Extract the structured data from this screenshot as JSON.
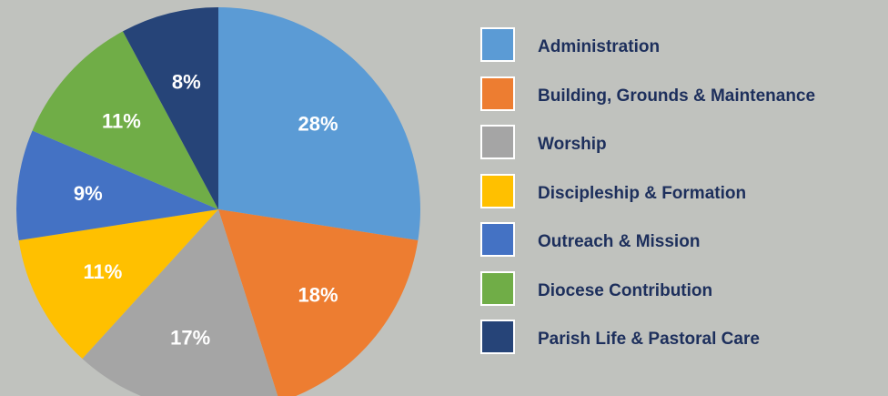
{
  "chart_data": {
    "type": "pie",
    "title": "",
    "legend": "right",
    "slices": [
      {
        "label": "Administration",
        "value": 28,
        "display": "28%",
        "color": "#5b9bd5"
      },
      {
        "label": "Building, Grounds & Maintenance",
        "value": 18,
        "display": "18%",
        "color": "#ed7d31"
      },
      {
        "label": "Worship",
        "value": 17,
        "display": "17%",
        "color": "#a5a5a5"
      },
      {
        "label": "Discipleship & Formation",
        "value": 11,
        "display": "11%",
        "color": "#ffc000"
      },
      {
        "label": "Outreach & Mission",
        "value": 9,
        "display": "9%",
        "color": "#4472c4"
      },
      {
        "label": "Diocese Contribution",
        "value": 11,
        "display": "11%",
        "color": "#70ad47"
      },
      {
        "label": "Parish Life & Pastoral Care",
        "value": 8,
        "display": "8%",
        "color": "#264478"
      }
    ]
  }
}
